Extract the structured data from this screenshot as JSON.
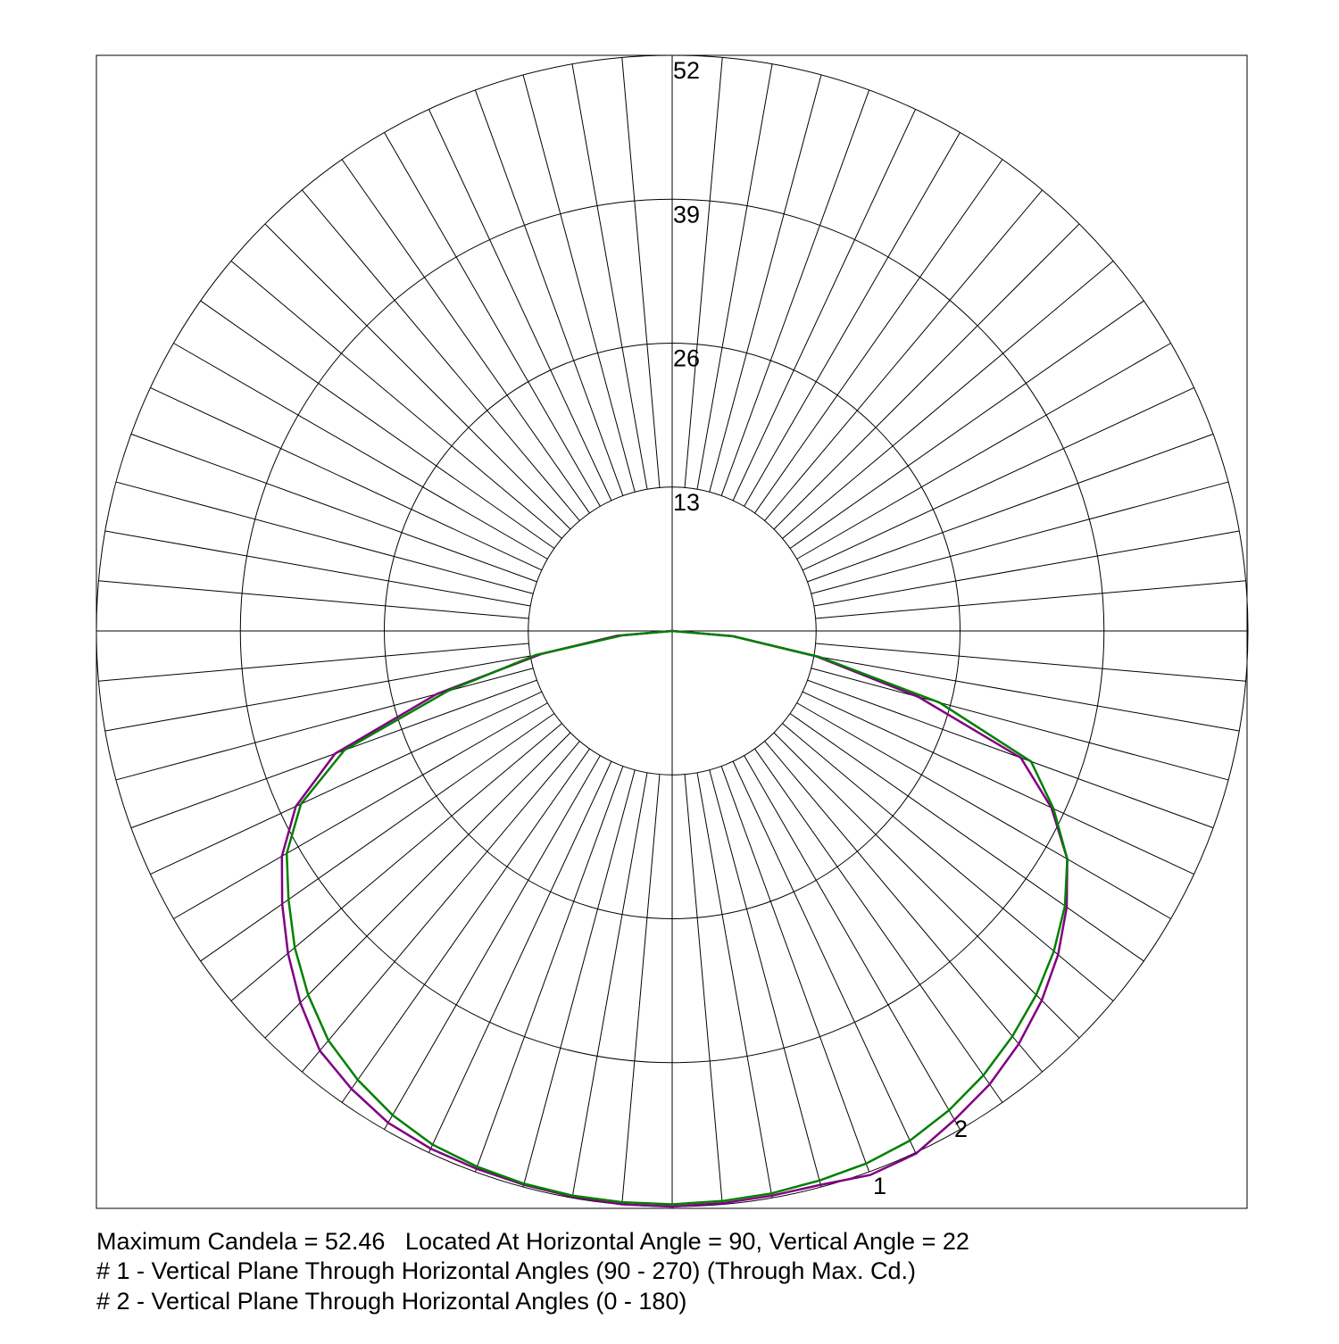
{
  "chart_data": {
    "type": "polar",
    "angles": [
      -90,
      -85,
      -80,
      -75,
      -70,
      -65,
      -60,
      -55,
      -50,
      -45,
      -40,
      -35,
      -30,
      -25,
      -20,
      -15,
      -10,
      -5,
      0,
      5,
      10,
      15,
      20,
      25,
      30,
      35,
      40,
      45,
      50,
      55,
      60,
      65,
      70,
      75,
      80,
      85,
      90
    ],
    "series": [
      {
        "name": "1",
        "color": "#800080",
        "values": [
          0,
          5,
          12,
          22,
          32.4,
          37.5,
          40.7,
          43,
          45.3,
          47.5,
          49.5,
          50.5,
          51.3,
          51.6,
          51.7,
          51.8,
          51.9,
          52,
          52,
          51.9,
          51.8,
          51.8,
          52.3,
          52.1,
          51,
          50,
          48.7,
          47.2,
          45.5,
          43.5,
          41.2,
          37.8,
          33.5,
          23,
          13.2,
          5.5,
          0
        ]
      },
      {
        "name": "2",
        "color": "#008000",
        "values": [
          0,
          4.5,
          12.5,
          21,
          31.5,
          37,
          40.2,
          42.3,
          44.5,
          46.5,
          48.3,
          49.5,
          50.5,
          51.2,
          51.5,
          51.7,
          51.8,
          51.8,
          51.8,
          51.7,
          51.6,
          51.4,
          51.2,
          50.8,
          50,
          49,
          47.8,
          46.5,
          45,
          43.3,
          41.2,
          38,
          34.5,
          25,
          13.5,
          5.5,
          0
        ]
      }
    ],
    "rlim": [
      0,
      52
    ],
    "rticks": [
      13,
      26,
      39,
      52
    ],
    "notes": [
      "Maximum Candela = 52.46   Located At Horizontal Angle = 90, Vertical Angle = 22",
      "# 1 - Vertical Plane Through Horizontal Angles (90 - 270) (Through Max. Cd.)",
      "# 2 - Vertical Plane Through Horizontal Angles (0 - 180)"
    ]
  }
}
